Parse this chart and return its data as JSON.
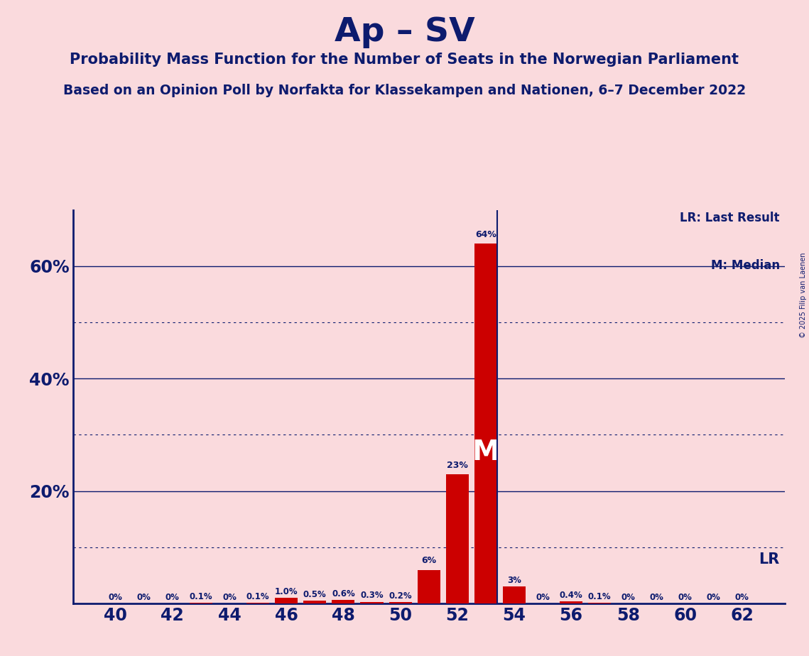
{
  "title": "Ap – SV",
  "subtitle1": "Probability Mass Function for the Number of Seats in the Norwegian Parliament",
  "subtitle2": "Based on an Opinion Poll by Norfakta for Klassekampen and Nationen, 6–7 December 2022",
  "copyright": "© 2025 Filip van Laenen",
  "background_color": "#fadadd",
  "bar_color": "#cc0000",
  "title_color": "#0d1b6e",
  "seats": [
    40,
    41,
    42,
    43,
    44,
    45,
    46,
    47,
    48,
    49,
    50,
    51,
    52,
    53,
    54,
    55,
    56,
    57,
    58,
    59,
    60,
    61,
    62
  ],
  "probabilities": [
    0.0,
    0.0,
    0.0,
    0.1,
    0.0,
    0.1,
    1.0,
    0.5,
    0.6,
    0.3,
    0.2,
    6.0,
    23.0,
    64.0,
    3.0,
    0.0,
    0.4,
    0.1,
    0.0,
    0.0,
    0.0,
    0.0,
    0.0
  ],
  "labels": [
    "0%",
    "0%",
    "0%",
    "0.1%",
    "0%",
    "0.1%",
    "1.0%",
    "0.5%",
    "0.6%",
    "0.3%",
    "0.2%",
    "6%",
    "23%",
    "64%",
    "3%",
    "0%",
    "0.4%",
    "0.1%",
    "0%",
    "0%",
    "0%",
    "0%",
    "0%"
  ],
  "xtick_seats": [
    40,
    42,
    44,
    46,
    48,
    50,
    52,
    54,
    56,
    58,
    60,
    62
  ],
  "ylim": [
    0,
    70
  ],
  "median_seat": 53,
  "lr_seat": 53,
  "lr_label": "LR",
  "legend_lr": "LR: Last Result",
  "legend_m": "M: Median",
  "bar_width": 0.8
}
